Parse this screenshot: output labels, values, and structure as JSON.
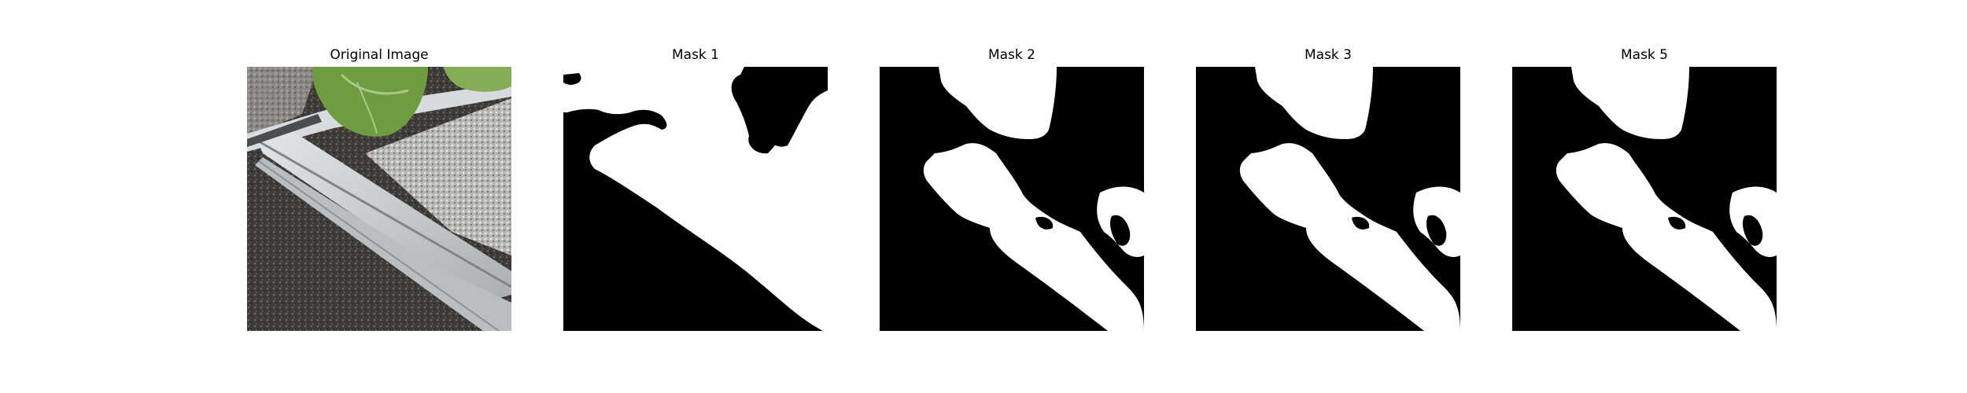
{
  "figure": {
    "panels": [
      {
        "title": "Original Image"
      },
      {
        "title": "Mask 1"
      },
      {
        "title": "Mask 2"
      },
      {
        "title": "Mask 3"
      },
      {
        "title": "Mask 5"
      }
    ]
  },
  "colors": {
    "mask_foreground": "#ffffff",
    "mask_background": "#000000",
    "leaf_green": "#6b9a3c",
    "rail_silver": "#c9ced1",
    "gravel_dark": "#3a3834"
  }
}
